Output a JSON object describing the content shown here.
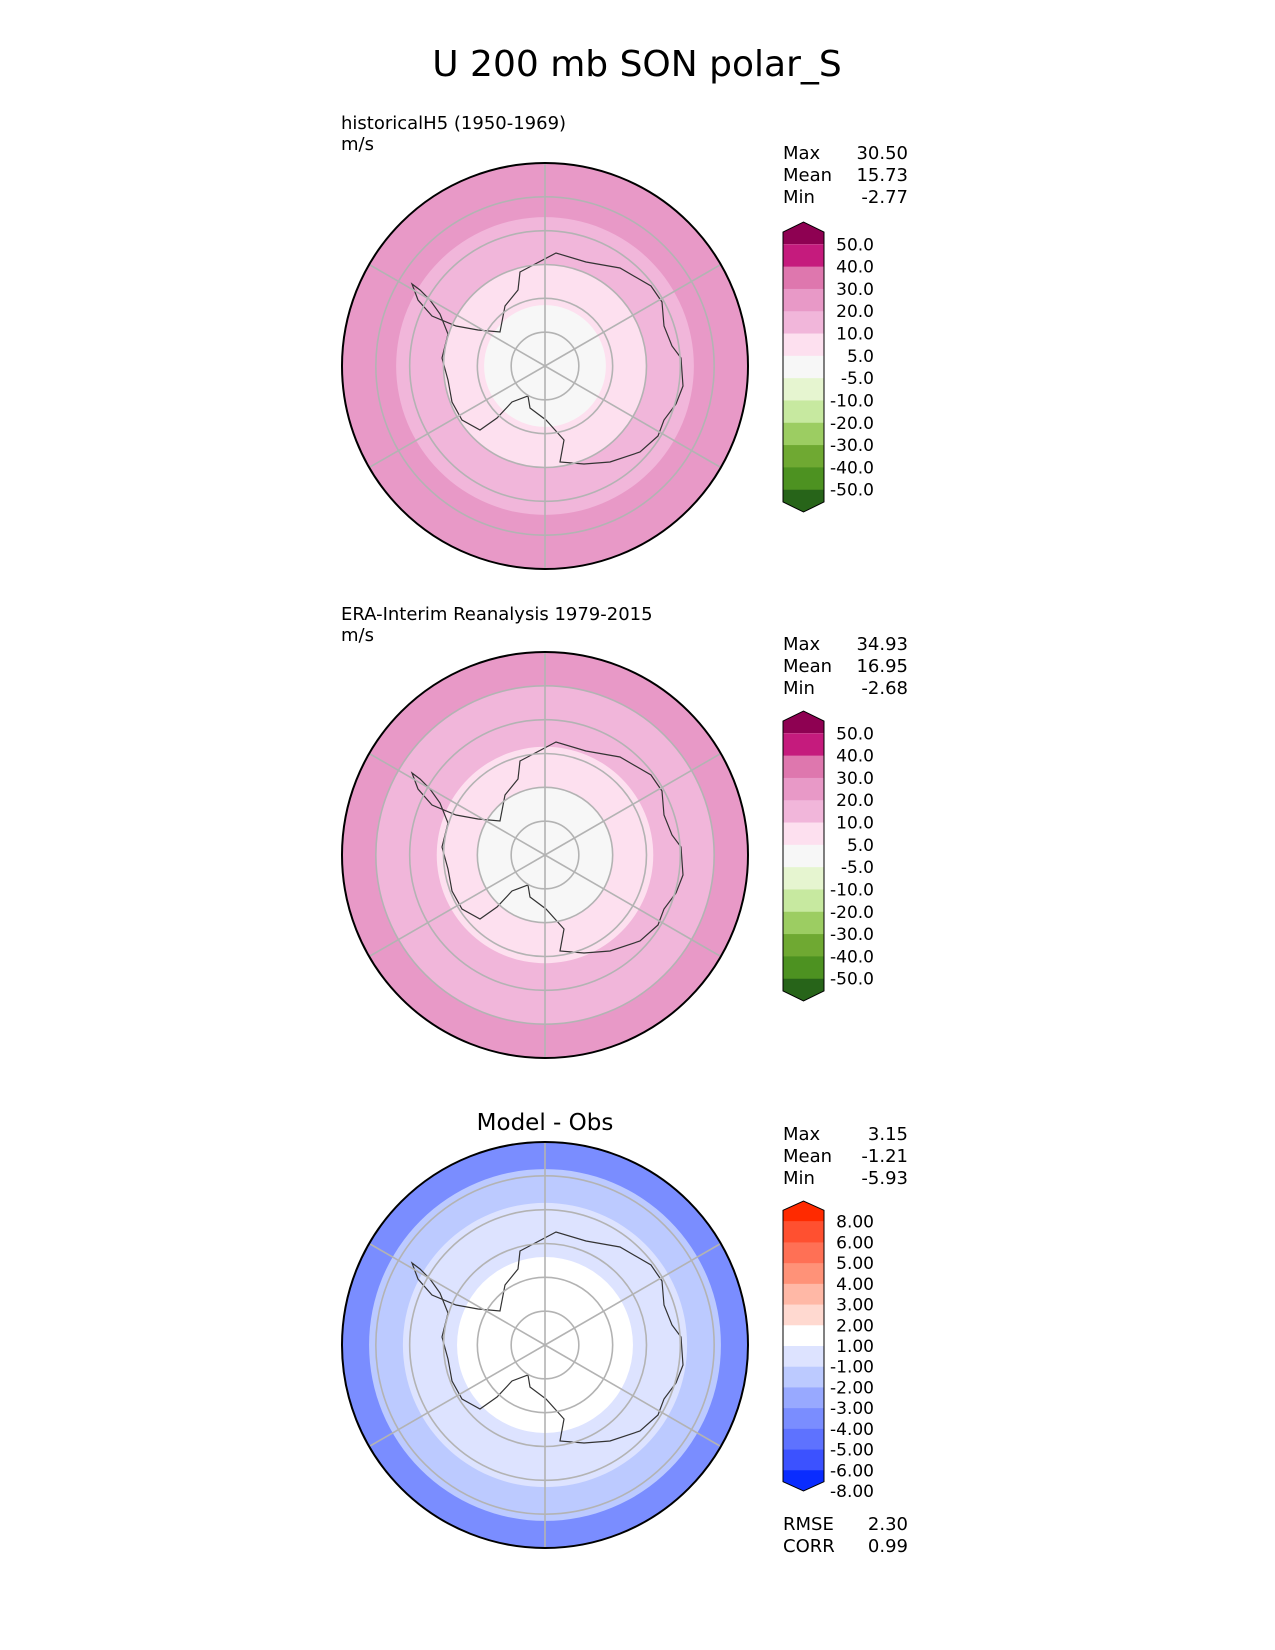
{
  "figure_title": "U 200 mb SON polar_S",
  "colors": {
    "test_levels": [
      "#8e0152",
      "#c51b7d",
      "#de77ae",
      "#e899c7",
      "#f1b6da",
      "#fde0ef",
      "#f7f7f7",
      "#e6f5d0",
      "#c7e9a0",
      "#9ccd62",
      "#6fa932",
      "#4d9221",
      "#276419"
    ],
    "diff_levels": [
      "#ff2a00",
      "#ff5030",
      "#ff7055",
      "#ff9278",
      "#ffb8a6",
      "#ffd9d0",
      "#ffffff",
      "#dde3ff",
      "#bccaff",
      "#98a9ff",
      "#7a8dff",
      "#5e72ff",
      "#3c52ff",
      "#0a2cff"
    ]
  },
  "chart_data": [
    {
      "type": "heatmap",
      "panel": "test",
      "title": "historicalH5 (1950-1969)",
      "units": "m/s",
      "stats": [
        {
          "label": "Max",
          "value": "30.50"
        },
        {
          "label": "Mean",
          "value": "15.73"
        },
        {
          "label": "Min",
          "value": "-2.77"
        }
      ],
      "colorbar_ticks": [
        "50.0",
        "40.0",
        "30.0",
        "20.0",
        "10.0",
        "5.0",
        "-5.0",
        "-10.0",
        "-20.0",
        "-30.0",
        "-40.0",
        "-50.0"
      ],
      "zones": [
        {
          "lat": -30,
          "value": 25.0
        },
        {
          "lat": -46,
          "value": 15.0
        },
        {
          "lat": -60,
          "value": 7.5
        },
        {
          "lat": -72,
          "value": 0.0
        }
      ]
    },
    {
      "type": "heatmap",
      "panel": "reference",
      "title": "ERA-Interim Reanalysis 1979-2015",
      "units": "m/s",
      "stats": [
        {
          "label": "Max",
          "value": "34.93"
        },
        {
          "label": "Mean",
          "value": "16.95"
        },
        {
          "label": "Min",
          "value": "-2.68"
        }
      ],
      "colorbar_ticks": [
        "50.0",
        "40.0",
        "30.0",
        "20.0",
        "10.0",
        "5.0",
        "-5.0",
        "-10.0",
        "-20.0",
        "-30.0",
        "-40.0",
        "-50.0"
      ],
      "zones": [
        {
          "lat": -30,
          "value": 25.0
        },
        {
          "lat": -40,
          "value": 15.0
        },
        {
          "lat": -58,
          "value": 7.5
        },
        {
          "lat": -70,
          "value": 0.0
        }
      ]
    },
    {
      "type": "heatmap",
      "panel": "difference",
      "title": "Model - Obs",
      "units": "",
      "stats": [
        {
          "label": "Max",
          "value": "3.15"
        },
        {
          "label": "Mean",
          "value": "-1.21"
        },
        {
          "label": "Min",
          "value": "-5.93"
        }
      ],
      "colorbar_ticks": [
        "8.00",
        "6.00",
        "5.00",
        "4.00",
        "3.00",
        "2.00",
        "1.00",
        "-1.00",
        "-2.00",
        "-3.00",
        "-4.00",
        "-5.00",
        "-6.00",
        "-8.00"
      ],
      "metrics": [
        {
          "label": "RMSE",
          "value": "2.30"
        },
        {
          "label": "CORR",
          "value": "0.99"
        }
      ],
      "zones": [
        {
          "lat": -30,
          "value": -3.5
        },
        {
          "lat": -38,
          "value": -1.5
        },
        {
          "lat": -48,
          "value": 0.0
        },
        {
          "lat": -64,
          "value": 1.5
        }
      ]
    }
  ]
}
